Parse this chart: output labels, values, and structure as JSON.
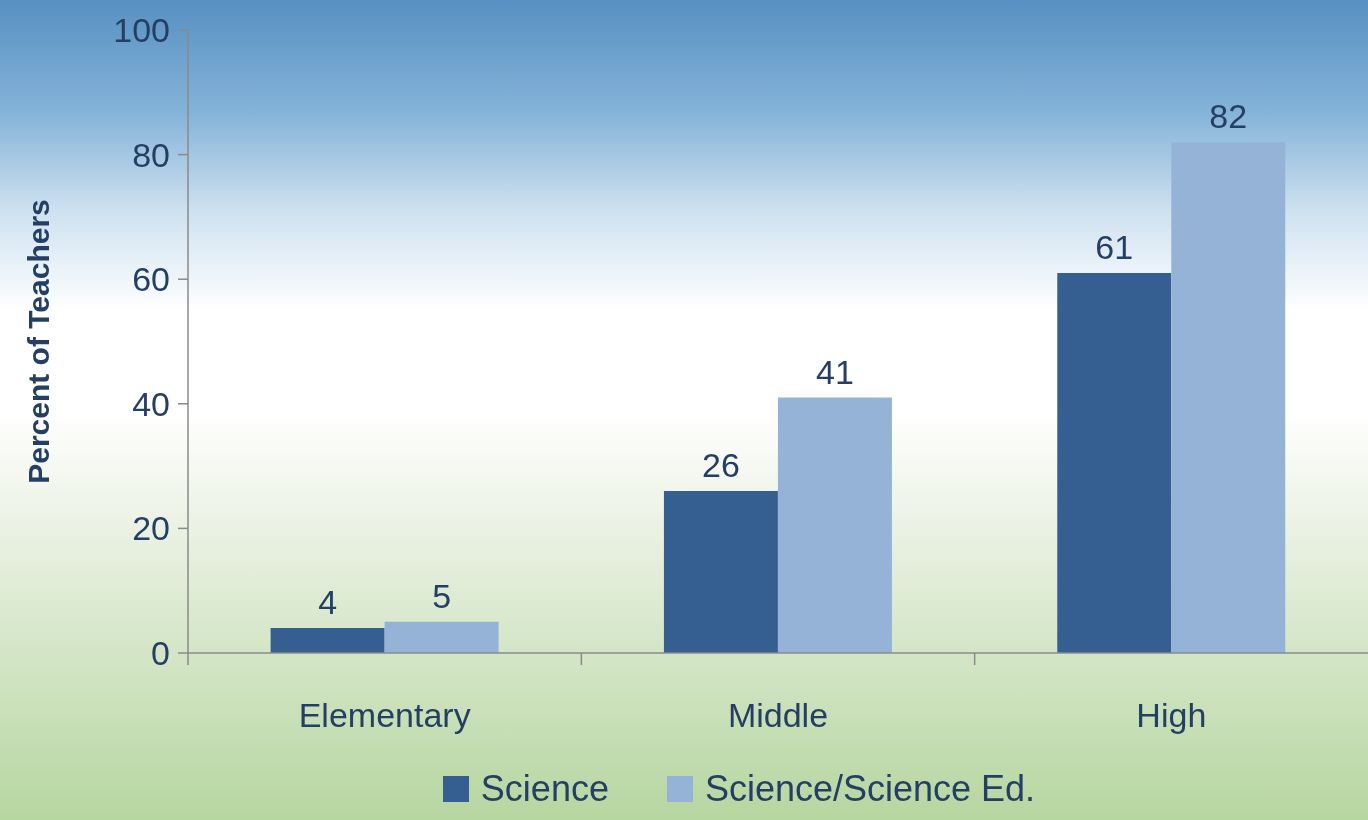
{
  "chart_data": {
    "type": "bar",
    "ylabel": "Percent of Teachers",
    "categories": [
      "Elementary",
      "Middle",
      "High"
    ],
    "series": [
      {
        "name": "Science",
        "color": "#355f91",
        "values": [
          4,
          26,
          61
        ]
      },
      {
        "name": "Science/Science Ed.",
        "color": "#95b3d7",
        "values": [
          5,
          41,
          82
        ]
      }
    ],
    "ylim": [
      0,
      100
    ],
    "yticks": [
      0,
      20,
      40,
      60,
      80,
      100
    ],
    "legend": "bottom",
    "data_labels": true
  }
}
